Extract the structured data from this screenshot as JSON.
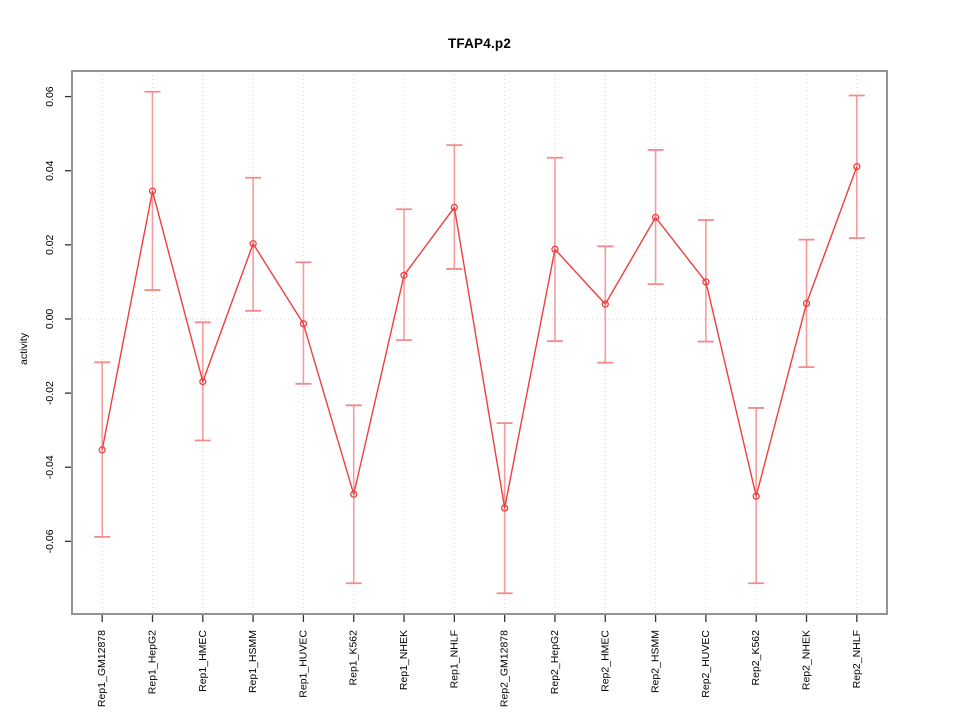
{
  "window": {
    "background": "#ffffff"
  },
  "chart_data": {
    "type": "line",
    "title": "TFAP4.p2",
    "xlabel": "",
    "ylabel": "activity",
    "categories": [
      "Rep1_GM12878",
      "Rep1_HepG2",
      "Rep1_HMEC",
      "Rep1_HSMM",
      "Rep1_HUVEC",
      "Rep1_K562",
      "Rep1_NHEK",
      "Rep1_NHLF",
      "Rep2_GM12878",
      "Rep2_HepG2",
      "Rep2_HMEC",
      "Rep2_HSMM",
      "Rep2_HUVEC",
      "Rep2_K562",
      "Rep2_NHEK",
      "Rep2_NHLF"
    ],
    "series": [
      {
        "name": "activity",
        "values": [
          -0.0353,
          0.0345,
          -0.0169,
          0.0203,
          -0.0013,
          -0.0473,
          0.0118,
          0.0301,
          -0.051,
          0.0188,
          0.004,
          0.0274,
          0.01,
          -0.0478,
          0.0042,
          0.0411
        ],
        "error_low": [
          -0.0588,
          0.0078,
          -0.0328,
          0.0022,
          -0.0175,
          -0.0713,
          -0.0057,
          0.0135,
          -0.074,
          -0.006,
          -0.0118,
          0.0094,
          -0.0061,
          -0.0713,
          -0.013,
          0.0218
        ],
        "error_high": [
          -0.0117,
          0.0613,
          -0.0009,
          0.0381,
          0.0153,
          -0.0233,
          0.0296,
          0.0469,
          -0.0281,
          0.0435,
          0.0196,
          0.0456,
          0.0267,
          -0.024,
          0.0214,
          0.0603
        ]
      }
    ],
    "ylim": [
      -0.0796,
      0.0669
    ],
    "yticks": [
      0.06,
      0.04,
      0.02,
      0.0,
      -0.02,
      -0.04,
      -0.06
    ],
    "ytick_labels": [
      "0.06",
      "0.04",
      "0.02",
      "0.00",
      "-0.02",
      "-0.04",
      "-0.06"
    ],
    "legend": "none",
    "grid": {
      "vertical_at_each_category": true,
      "horizontal_line_at_zero": true,
      "style": "dotted"
    },
    "colors": {
      "line": "#ee3f3f",
      "point": "#ee3f3f",
      "error_bar": "#f79c9c",
      "error_cap": "#f48a8a",
      "grid": "#d6d6d6",
      "frame": "#898989",
      "tick": "#333333",
      "text": "#000000"
    }
  }
}
